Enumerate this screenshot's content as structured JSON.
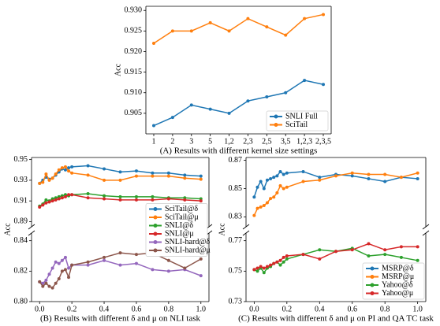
{
  "chart_data": [
    {
      "type": "line",
      "title": "(A) Results with different kernel size settings",
      "ylabel": "Acc",
      "categories": [
        "1",
        "2",
        "3",
        "5",
        "1,2",
        "2,3",
        "2,5",
        "3,5",
        "1,2,3",
        "2,3,5"
      ],
      "series": [
        {
          "name": "SNLI Full",
          "color": "#1f77b4",
          "values": [
            0.902,
            0.904,
            0.907,
            0.906,
            0.905,
            0.908,
            0.909,
            0.91,
            0.913,
            0.912
          ]
        },
        {
          "name": "SciTail",
          "color": "#ff7f0e",
          "values": [
            0.922,
            0.925,
            0.925,
            0.927,
            0.925,
            0.928,
            0.926,
            0.924,
            0.928,
            0.929
          ]
        }
      ],
      "ylim": [
        0.9,
        0.931
      ],
      "yticks": [
        0.905,
        {
          "value": 0.91,
          "label": "0.910"
        },
        0.915,
        {
          "value": 0.92,
          "label": "0.920"
        },
        0.925,
        {
          "value": 0.93,
          "label": "0.930"
        }
      ],
      "legend": "lower right"
    },
    {
      "type": "broken-line",
      "title": "(B) Results with different δ and μ on NLI task",
      "ylabel": "Acc",
      "x": [
        0,
        0.02,
        0.04,
        0.06,
        0.08,
        0.1,
        0.12,
        0.14,
        0.16,
        0.18,
        0.2,
        0.3,
        0.4,
        0.5,
        0.6,
        0.7,
        0.8,
        0.9,
        1.0
      ],
      "xlim": [
        -0.05,
        1.05
      ],
      "xticks": [
        {
          "value": 0,
          "label": "0.0"
        },
        0.2,
        0.4,
        0.6,
        0.8,
        {
          "value": 1,
          "label": "1.0"
        }
      ],
      "ylim_top": [
        0.885,
        0.952
      ],
      "yticks_top": [
        0.89,
        0.91,
        0.93,
        0.95
      ],
      "ylim_bottom": [
        0.8,
        0.845
      ],
      "yticks_bottom": [
        {
          "value": 0.8,
          "label": "0.80"
        },
        0.82,
        0.84
      ],
      "series": [
        {
          "name": "SciTail@δ",
          "color": "#1f77b4",
          "values": [
            0.927,
            0.93,
            0.933,
            0.931,
            0.932,
            0.935,
            0.938,
            0.941,
            0.94,
            0.942,
            0.943,
            0.944,
            0.941,
            0.938,
            0.939,
            0.937,
            0.937,
            0.935,
            0.934
          ]
        },
        {
          "name": "SciTail@μ",
          "color": "#ff7f0e",
          "values": [
            0.927,
            0.928,
            0.936,
            0.93,
            0.932,
            0.936,
            0.94,
            0.942,
            0.943,
            0.939,
            0.937,
            0.935,
            0.93,
            0.93,
            0.934,
            0.934,
            0.934,
            0.932,
            0.931
          ]
        },
        {
          "name": "SNLI@δ",
          "color": "#2ca02c",
          "values": [
            0.905,
            0.907,
            0.911,
            0.91,
            0.912,
            0.913,
            0.914,
            0.915,
            0.916,
            0.915,
            0.916,
            0.917,
            0.915,
            0.914,
            0.914,
            0.914,
            0.913,
            0.913,
            0.912
          ]
        },
        {
          "name": "SNLI@μ",
          "color": "#d62728",
          "values": [
            0.904,
            0.906,
            0.908,
            0.909,
            0.91,
            0.911,
            0.912,
            0.913,
            0.914,
            0.916,
            0.916,
            0.913,
            0.912,
            0.911,
            0.911,
            0.911,
            0.912,
            0.911,
            0.91
          ]
        },
        {
          "name": "SNLI-hard@δ",
          "color": "#9467bd",
          "values": [
            0.813,
            0.812,
            0.814,
            0.818,
            0.822,
            0.826,
            0.825,
            0.827,
            0.829,
            0.822,
            0.824,
            0.824,
            0.827,
            0.824,
            0.825,
            0.821,
            0.82,
            0.821,
            0.817
          ]
        },
        {
          "name": "SNLI-hard@μ",
          "color": "#8c564b",
          "values": [
            0.813,
            0.81,
            0.812,
            0.81,
            0.809,
            0.812,
            0.815,
            0.82,
            0.821,
            0.816,
            0.824,
            0.826,
            0.829,
            0.832,
            0.831,
            0.832,
            0.827,
            0.822,
            0.828
          ]
        }
      ],
      "legend": "center right"
    },
    {
      "type": "broken-line",
      "title": "(C) Results with different δ and μ on PI and QA TC task",
      "ylabel": "Acc",
      "x": [
        0,
        0.02,
        0.04,
        0.06,
        0.08,
        0.1,
        0.12,
        0.14,
        0.16,
        0.18,
        0.2,
        0.3,
        0.4,
        0.5,
        0.6,
        0.7,
        0.8,
        0.9,
        1.0
      ],
      "xlim": [
        -0.05,
        1.05
      ],
      "xticks": [
        {
          "value": 0,
          "label": "0.0"
        },
        0.2,
        0.4,
        0.6,
        0.8,
        {
          "value": 1,
          "label": "1.0"
        }
      ],
      "ylim_top": [
        0.823,
        0.872
      ],
      "yticks_top": [
        0.83,
        0.85,
        0.87
      ],
      "ylim_bottom": [
        0.73,
        0.775
      ],
      "yticks_bottom": [
        0.73,
        0.75,
        0.77
      ],
      "series": [
        {
          "name": "MSRP@δ",
          "color": "#1f77b4",
          "values": [
            0.844,
            0.851,
            0.855,
            0.85,
            0.856,
            0.857,
            0.858,
            0.859,
            0.862,
            0.86,
            0.861,
            0.862,
            0.858,
            0.86,
            0.859,
            0.857,
            0.855,
            0.858,
            0.857
          ]
        },
        {
          "name": "MSRP@μ",
          "color": "#ff7f0e",
          "values": [
            0.831,
            0.836,
            0.837,
            0.838,
            0.84,
            0.843,
            0.844,
            0.847,
            0.852,
            0.85,
            0.851,
            0.855,
            0.856,
            0.859,
            0.861,
            0.86,
            0.86,
            0.858,
            0.861
          ]
        },
        {
          "name": "Yahoo@δ",
          "color": "#2ca02c",
          "values": [
            0.751,
            0.75,
            0.752,
            0.749,
            0.752,
            0.753,
            0.755,
            0.756,
            0.754,
            0.756,
            0.758,
            0.761,
            0.764,
            0.763,
            0.765,
            0.76,
            0.761,
            0.759,
            0.757
          ]
        },
        {
          "name": "Yahoo@μ",
          "color": "#d62728",
          "values": [
            0.751,
            0.752,
            0.753,
            0.752,
            0.753,
            0.754,
            0.755,
            0.756,
            0.757,
            0.759,
            0.76,
            0.761,
            0.758,
            0.763,
            0.764,
            0.768,
            0.764,
            0.766,
            0.766
          ]
        }
      ],
      "legend": "lower right"
    }
  ]
}
